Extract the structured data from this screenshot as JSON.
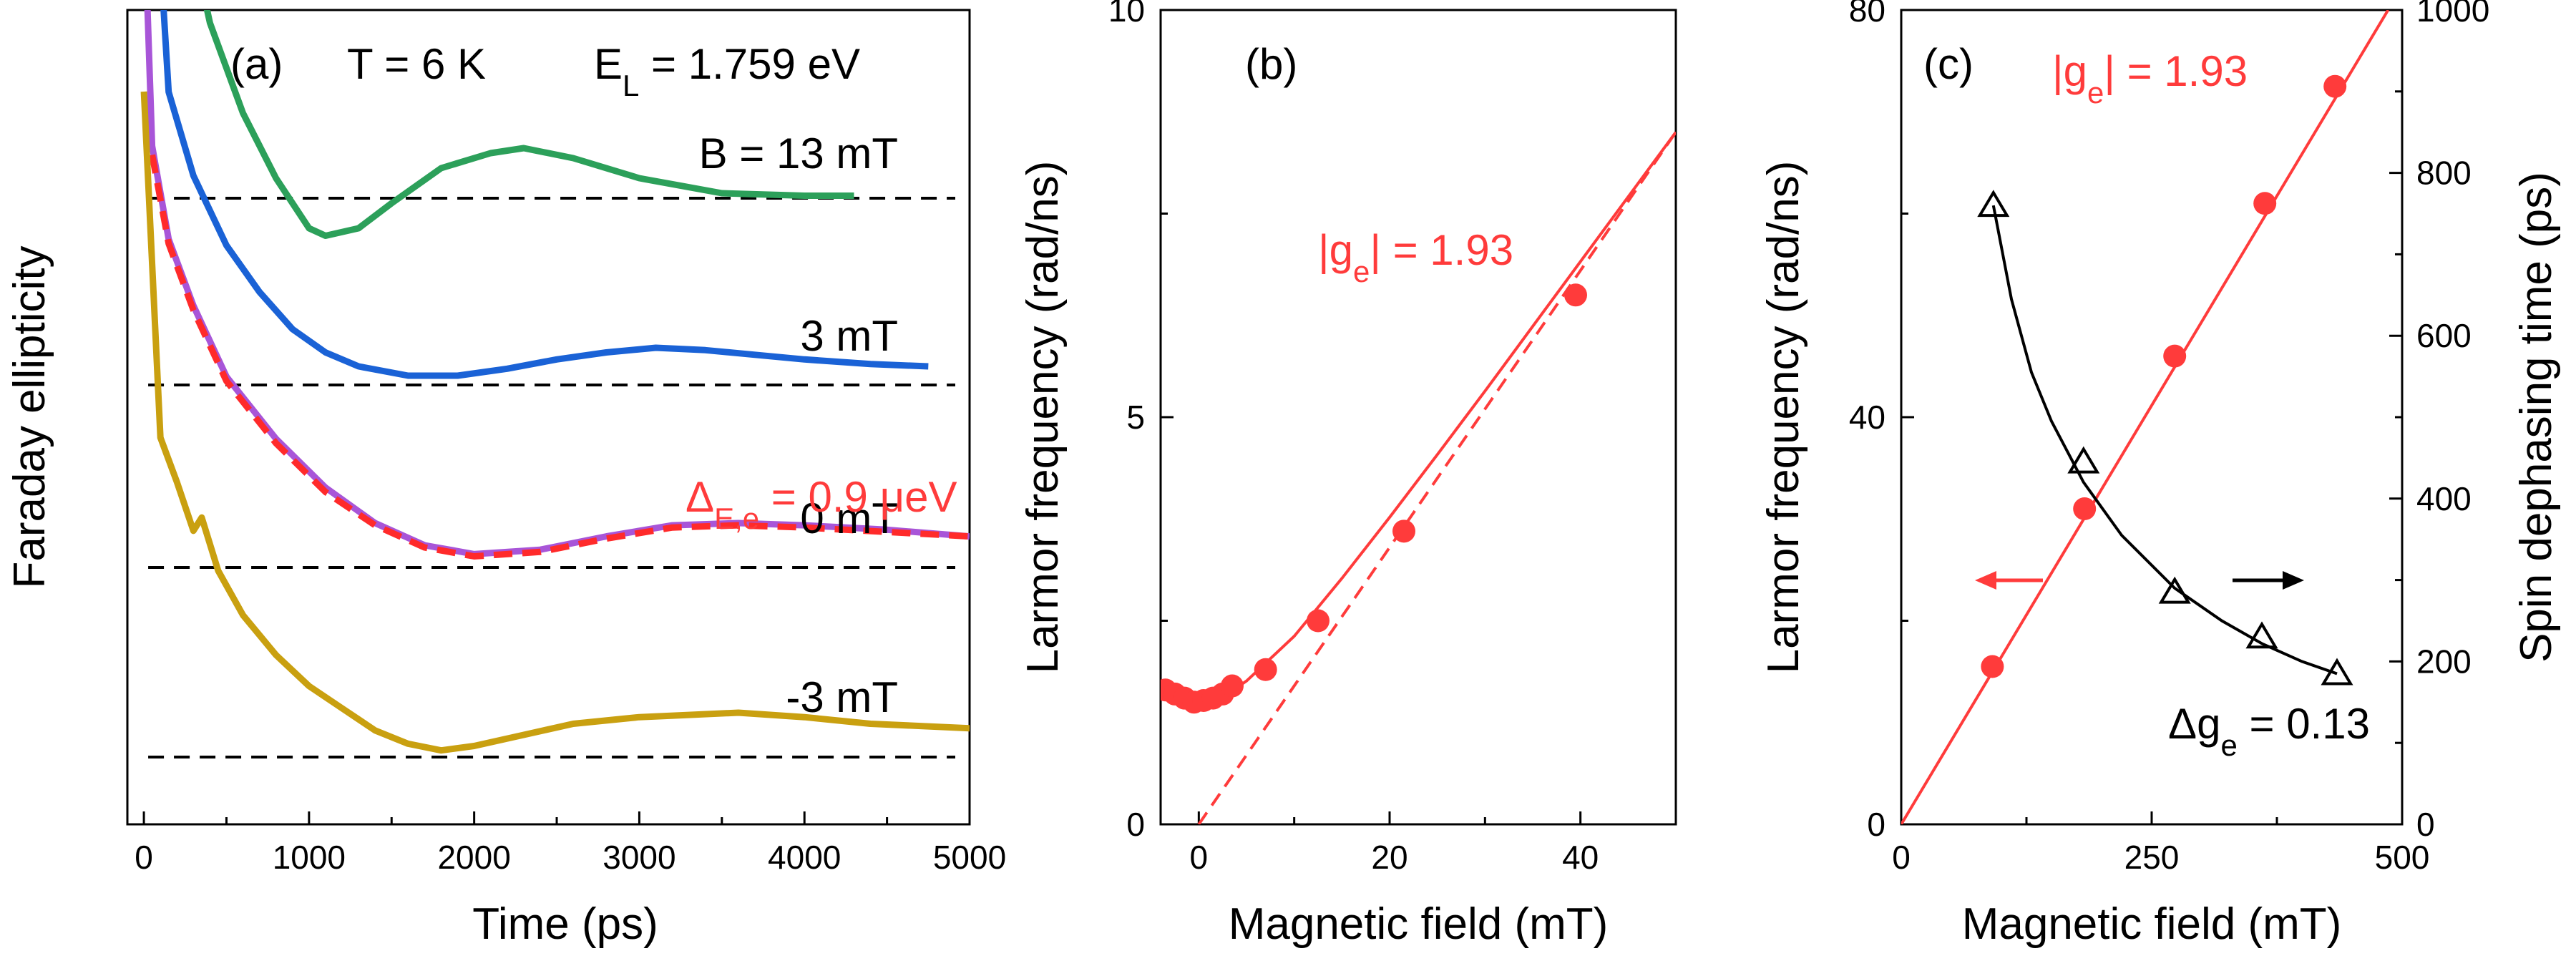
{
  "chart_data": [
    {
      "panel": "(a)",
      "type": "line",
      "xlabel": "Time (ps)",
      "ylabel": "Faraday ellipticity",
      "xlim": [
        -100,
        5000
      ],
      "xticks": [
        0,
        1000,
        2000,
        3000,
        4000,
        5000
      ],
      "annotations": {
        "temperature": "T = 6 K",
        "laser_energy_prefix": "E",
        "laser_energy_sub": "L",
        "laser_energy_value": " = 1.759 eV",
        "delta_prefix": "Δ",
        "delta_sub": "E,e",
        "delta_value": " = 0.9 μeV"
      },
      "series": [
        {
          "name": "B = 13 mT",
          "color": "#2ca05a",
          "x": [
            0,
            200,
            400,
            600,
            800,
            1000,
            1100,
            1300,
            1500,
            1800,
            2100,
            2300,
            2600,
            3000,
            3500,
            4000,
            4300
          ],
          "y": [
            12,
            6.5,
            3.5,
            1.7,
            0.4,
            -0.6,
            -0.75,
            -0.6,
            -0.1,
            0.6,
            0.9,
            1.0,
            0.8,
            0.4,
            0.1,
            0.05,
            0.05
          ]
        },
        {
          "name": "3 mT",
          "color": "#1a62d6",
          "x": [
            0,
            150,
            300,
            500,
            700,
            900,
            1100,
            1300,
            1600,
            1900,
            2200,
            2500,
            2800,
            3100,
            3400,
            3700,
            4000,
            4400,
            4750
          ],
          "y": [
            15,
            6.3,
            4.5,
            3.0,
            2.0,
            1.2,
            0.7,
            0.4,
            0.2,
            0.2,
            0.35,
            0.55,
            0.7,
            0.8,
            0.75,
            0.65,
            0.55,
            0.45,
            0.4
          ]
        },
        {
          "name": "0 mT",
          "color": "#a855d8",
          "x": [
            0,
            50,
            150,
            300,
            500,
            800,
            1100,
            1400,
            1700,
            2000,
            2400,
            2800,
            3200,
            3600,
            4000,
            4500,
            5000
          ],
          "y": [
            15,
            9.5,
            7.4,
            5.9,
            4.3,
            2.9,
            1.8,
            1.0,
            0.5,
            0.3,
            0.4,
            0.7,
            0.95,
            1.0,
            0.95,
            0.85,
            0.7
          ]
        },
        {
          "name": "0 mT fit",
          "color": "#ff2a2a",
          "x": [
            50,
            150,
            300,
            500,
            800,
            1100,
            1400,
            1700,
            2000,
            2400,
            2800,
            3200,
            3600,
            4000,
            4500,
            5000
          ],
          "y": [
            9.3,
            7.3,
            5.8,
            4.2,
            2.8,
            1.7,
            0.95,
            0.45,
            0.25,
            0.35,
            0.65,
            0.9,
            0.95,
            0.9,
            0.8,
            0.7
          ]
        },
        {
          "name": "-3 mT",
          "color": "#c9a010",
          "x": [
            0,
            100,
            200,
            300,
            350,
            450,
            600,
            800,
            1000,
            1200,
            1400,
            1600,
            1800,
            2000,
            2300,
            2600,
            3000,
            3300,
            3600,
            4000,
            4400,
            5000
          ],
          "y": [
            15,
            7.2,
            6.2,
            5.1,
            5.4,
            4.2,
            3.2,
            2.3,
            1.6,
            1.1,
            0.6,
            0.3,
            0.15,
            0.25,
            0.5,
            0.75,
            0.9,
            0.95,
            1.0,
            0.9,
            0.75,
            0.65
          ]
        }
      ],
      "curve_labels": [
        "B = 13 mT",
        "3 mT",
        "0 mT",
        "-3 mT"
      ]
    },
    {
      "panel": "(b)",
      "type": "scatter",
      "xlabel": "Magnetic field (mT)",
      "ylabel": "Larmor frequency (rad/ns)",
      "xlim": [
        -4,
        50
      ],
      "ylim": [
        0,
        10
      ],
      "xticks": [
        0,
        20,
        40
      ],
      "yticks": [
        0,
        5,
        10
      ],
      "g_label_prefix": "|g",
      "g_label_sub": "e",
      "g_label_value": "| = 1.93",
      "points": {
        "x": [
          -3.5,
          -2.5,
          -1.5,
          -0.5,
          0.5,
          1.5,
          2.5,
          3.5,
          7,
          12.5,
          21.5,
          39.5
        ],
        "y": [
          1.65,
          1.6,
          1.55,
          1.5,
          1.52,
          1.55,
          1.6,
          1.7,
          1.9,
          2.5,
          3.6,
          6.5
        ]
      },
      "fit_solid": {
        "x": [
          -4,
          -3,
          -2,
          -1,
          0,
          1,
          2,
          3,
          4,
          5,
          7,
          10,
          15,
          20,
          25,
          30,
          40,
          50
        ],
        "y": [
          1.65,
          1.62,
          1.58,
          1.54,
          1.52,
          1.53,
          1.56,
          1.62,
          1.68,
          1.76,
          1.98,
          2.31,
          3.02,
          3.77,
          4.54,
          5.32,
          6.91,
          8.5
        ]
      },
      "fit_dashed_asymptote": {
        "x": [
          0,
          50
        ],
        "y": [
          0,
          8.5
        ]
      }
    },
    {
      "panel": "(c)",
      "type": "scatter",
      "xlabel": "Magnetic field (mT)",
      "ylabel": "Larmor frequency (rad/ns)",
      "y2label": "Spin dephasing time (ps)",
      "xlim": [
        0,
        500
      ],
      "ylim": [
        0,
        80
      ],
      "y2lim": [
        0,
        1000
      ],
      "xticks": [
        0,
        250,
        500
      ],
      "yticks": [
        0,
        40,
        80
      ],
      "y2ticks": [
        0,
        200,
        400,
        600,
        800,
        1000
      ],
      "g_label_prefix": "|g",
      "g_label_sub": "e",
      "g_label_value": "| = 1.93",
      "dg_label_prefix": "Δg",
      "dg_label_sub": "e",
      "dg_label_value": " = 0.13",
      "larmor": {
        "x": [
          91,
          183,
          273,
          363,
          433
        ],
        "y": [
          15.5,
          31,
          46,
          61,
          72.5
        ]
      },
      "larmor_fit": {
        "x": [
          0,
          486
        ],
        "y": [
          0,
          80
        ]
      },
      "dephasing": {
        "x": [
          92,
          182,
          273,
          360,
          435
        ],
        "y": [
          760,
          445,
          285,
          230,
          185
        ]
      },
      "dephasing_fit": {
        "x": [
          92,
          110,
          130,
          150,
          182,
          220,
          273,
          320,
          360,
          400,
          435
        ],
        "y": [
          760,
          645,
          555,
          495,
          420,
          355,
          290,
          250,
          222,
          200,
          185
        ]
      }
    }
  ]
}
